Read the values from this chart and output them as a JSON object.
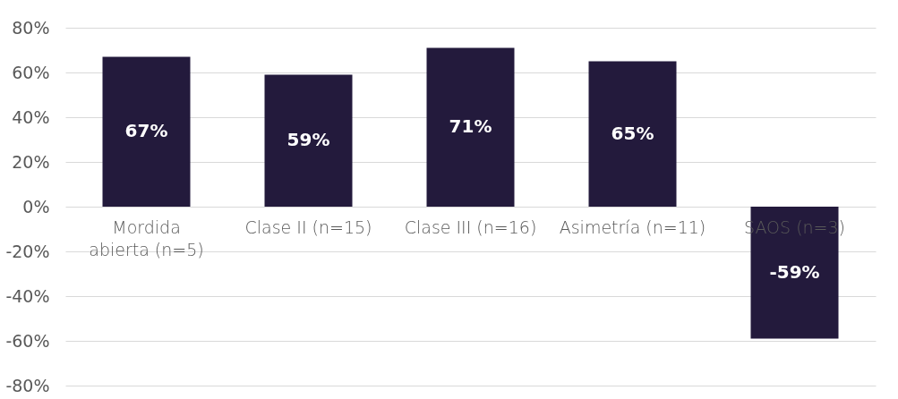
{
  "chart_data": {
    "type": "bar",
    "categories": [
      "Mordida abierta (n=5)",
      "Clase II (n=15)",
      "Clase III (n=16)",
      "Asimetría (n=11)",
      "SAOS (n=3)"
    ],
    "values": [
      67,
      59,
      71,
      65,
      -59
    ],
    "value_labels": [
      "67%",
      "59%",
      "71%",
      "65%",
      "-59%"
    ],
    "color": "#231a3c",
    "ylim": [
      -80,
      80
    ],
    "yticks": [
      {
        "value": -80,
        "label": "-80%"
      },
      {
        "value": -60,
        "label": "-60%"
      },
      {
        "value": -40,
        "label": "-40%"
      },
      {
        "value": -20,
        "label": "-20%"
      },
      {
        "value": 0,
        "label": "0%"
      },
      {
        "value": 20,
        "label": "20%"
      },
      {
        "value": 40,
        "label": "40%"
      },
      {
        "value": 60,
        "label": "60%"
      },
      {
        "value": 80,
        "label": "80%"
      }
    ],
    "grid": "y"
  }
}
